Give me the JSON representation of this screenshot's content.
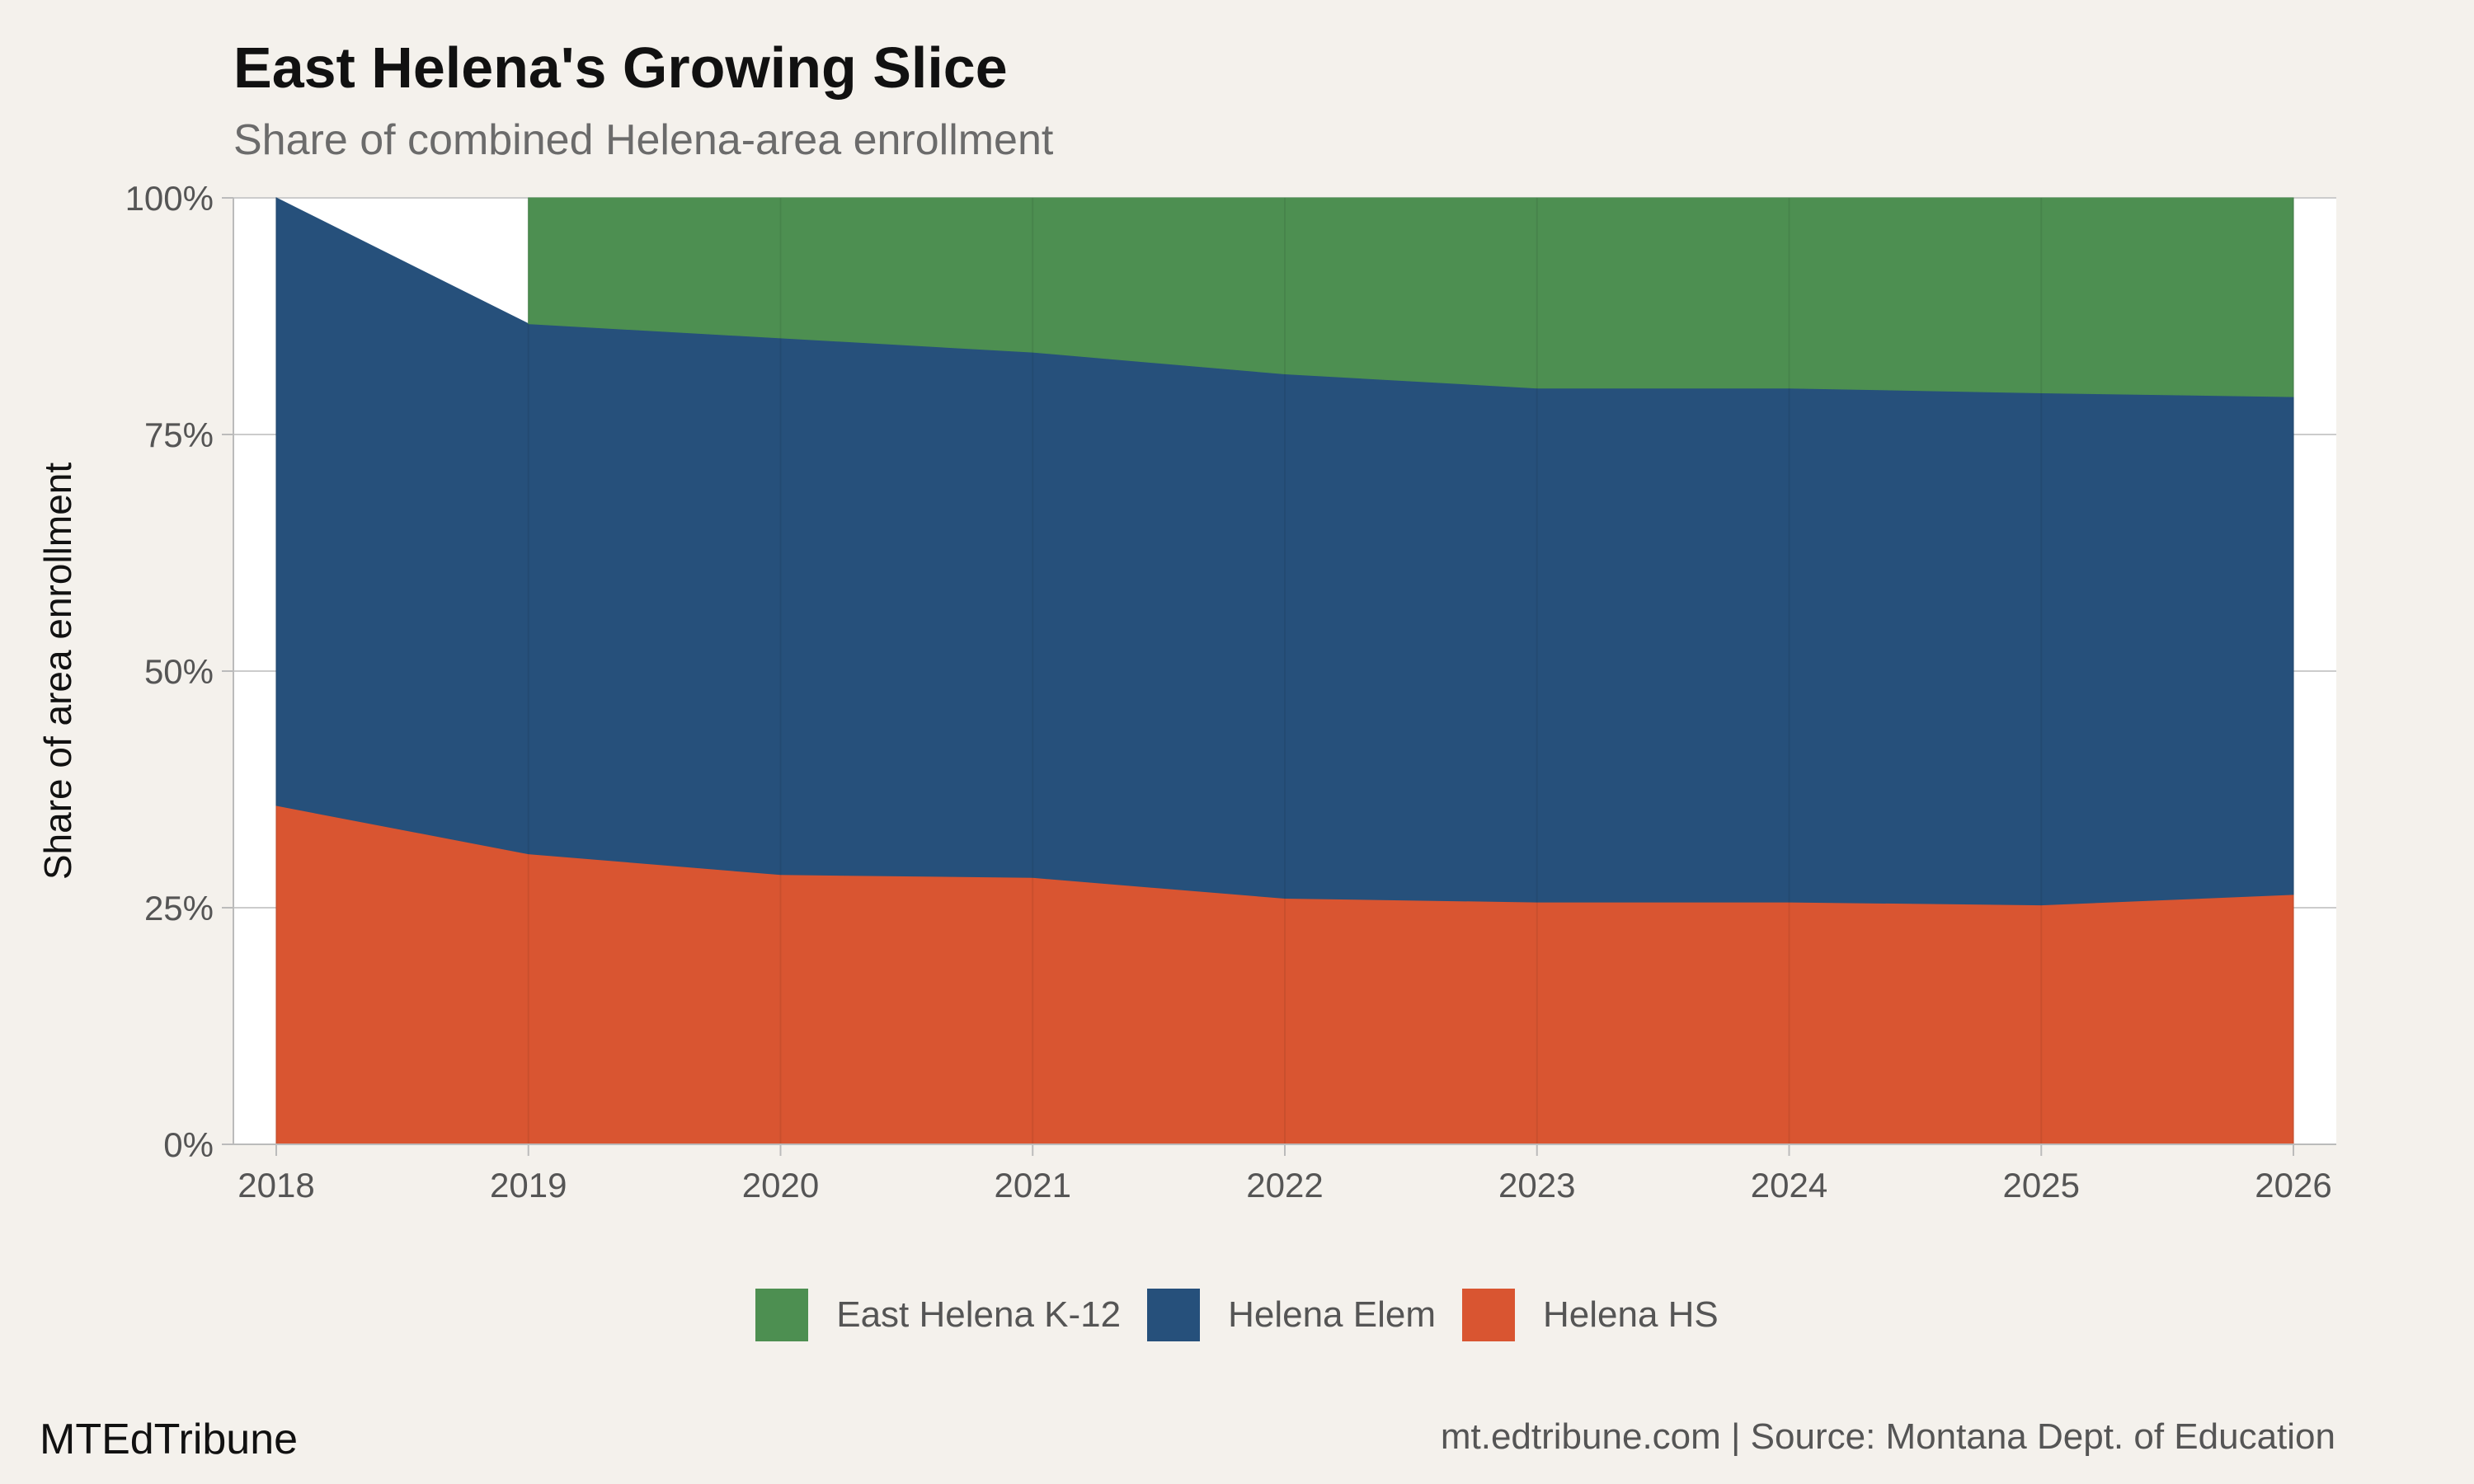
{
  "header": {
    "title": "East Helena's Growing Slice",
    "subtitle": "Share of combined Helena-area enrollment"
  },
  "footer": {
    "brand": "MTEdTribune",
    "caption": "mt.edtribune.com | Source: Montana Dept. of Education"
  },
  "colors": {
    "background": "#f4f1ec",
    "panel": "#ffffff",
    "east_helena": "#4d8f51",
    "helena_elem": "#26507b",
    "helena_hs": "#d95531",
    "grid": "#cccccc",
    "axis_text": "#555555"
  },
  "chart_data": {
    "type": "area",
    "stacked": true,
    "normalized": true,
    "title": "East Helena's Growing Slice",
    "subtitle": "Share of combined Helena-area enrollment",
    "xlabel": "",
    "ylabel": "Share of area enrollment",
    "x": [
      2018,
      2019,
      2020,
      2021,
      2022,
      2023,
      2024,
      2025,
      2026
    ],
    "xlim": [
      2017.83,
      2026.17
    ],
    "ylim": [
      0,
      1
    ],
    "y_ticks": [
      0,
      0.25,
      0.5,
      0.75,
      1
    ],
    "y_tick_labels": [
      "0%",
      "25%",
      "50%",
      "75%",
      "100%"
    ],
    "grid": true,
    "legend_position": "bottom",
    "series": [
      {
        "name": "Helena HS",
        "color": "#d95531",
        "values": [
          0.358,
          0.307,
          0.285,
          0.282,
          0.26,
          0.256,
          0.256,
          0.253,
          0.264
        ]
      },
      {
        "name": "Helena Elem",
        "color": "#26507b",
        "values": [
          0.642,
          0.56,
          0.567,
          0.555,
          0.554,
          0.543,
          0.543,
          0.541,
          0.526
        ]
      },
      {
        "name": "East Helena K-12",
        "color": "#4d8f51",
        "values": [
          null,
          0.133,
          0.148,
          0.163,
          0.186,
          0.201,
          0.201,
          0.206,
          0.21
        ]
      }
    ]
  }
}
